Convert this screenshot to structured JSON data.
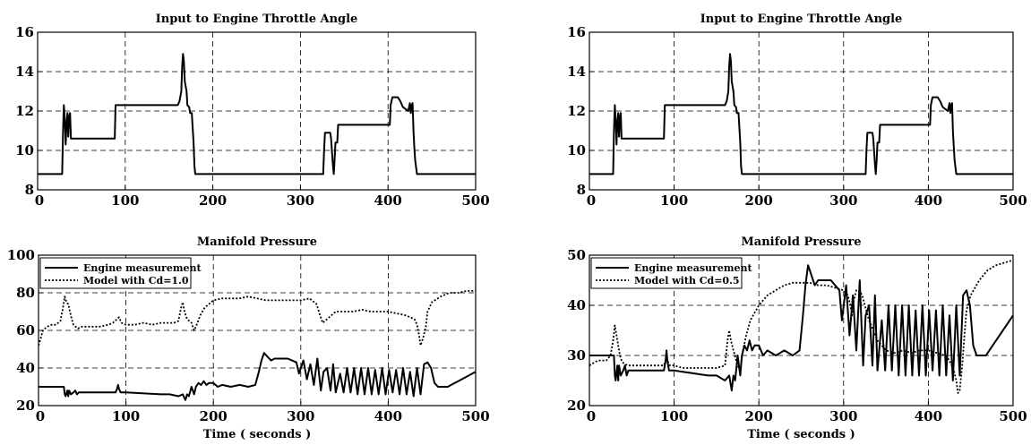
{
  "chart_data": [
    {
      "type": "line",
      "title": "Input to Engine Throttle Angle",
      "xlabel": "",
      "ylabel": "",
      "xlim": [
        0,
        500
      ],
      "ylim": [
        8,
        16
      ],
      "xticks": [
        "0",
        "100",
        "200",
        "300",
        "400",
        "500"
      ],
      "yticks": [
        "8",
        "10",
        "12",
        "14",
        "16"
      ],
      "grid": true,
      "series": [
        {
          "style": "solid",
          "x": [
            0,
            28,
            29,
            30,
            31,
            32,
            33,
            34,
            35,
            36,
            37,
            38,
            40,
            88,
            89,
            90,
            160,
            162,
            164,
            165,
            166,
            167,
            168,
            170,
            171,
            173,
            174,
            176,
            178,
            179,
            180,
            326,
            327,
            328,
            334,
            335,
            337,
            338,
            339,
            340,
            342,
            343,
            344,
            402,
            403,
            405,
            411,
            414,
            417,
            420,
            423,
            425,
            426,
            427,
            428,
            429,
            430,
            431,
            433,
            500
          ],
          "y": [
            8.8,
            8.8,
            11.0,
            12.3,
            11.6,
            10.3,
            11.4,
            11.9,
            10.7,
            11.7,
            11.9,
            10.6,
            10.6,
            10.6,
            12.3,
            12.3,
            12.3,
            12.5,
            13.0,
            14.3,
            14.9,
            14.5,
            13.5,
            13.0,
            12.3,
            12.2,
            11.9,
            11.9,
            10.4,
            9.2,
            8.8,
            8.8,
            10.0,
            10.9,
            10.9,
            10.6,
            9.3,
            8.8,
            9.5,
            10.4,
            10.4,
            11.3,
            11.3,
            11.3,
            12.3,
            12.7,
            12.7,
            12.5,
            12.2,
            12.1,
            12.0,
            12.4,
            11.9,
            12.3,
            12.4,
            11.0,
            10.2,
            9.5,
            8.8,
            8.8
          ]
        }
      ]
    },
    {
      "type": "line",
      "title": "Input to Engine Throttle Angle",
      "xlabel": "",
      "ylabel": "",
      "xlim": [
        0,
        500
      ],
      "ylim": [
        8,
        16
      ],
      "xticks": [
        "0",
        "100",
        "200",
        "300",
        "400",
        "500"
      ],
      "yticks": [
        "8",
        "10",
        "12",
        "14",
        "16"
      ],
      "grid": true,
      "series": [
        {
          "style": "solid",
          "x": [
            0,
            28,
            29,
            30,
            31,
            32,
            33,
            34,
            35,
            36,
            37,
            38,
            40,
            88,
            89,
            90,
            160,
            162,
            164,
            165,
            166,
            167,
            168,
            170,
            171,
            173,
            174,
            176,
            178,
            179,
            180,
            326,
            327,
            328,
            334,
            335,
            337,
            338,
            339,
            340,
            342,
            343,
            344,
            402,
            403,
            405,
            411,
            414,
            417,
            420,
            423,
            425,
            426,
            427,
            428,
            429,
            430,
            431,
            433,
            500
          ],
          "y": [
            8.8,
            8.8,
            11.0,
            12.3,
            11.6,
            10.3,
            11.4,
            11.9,
            10.7,
            11.7,
            11.9,
            10.6,
            10.6,
            10.6,
            12.3,
            12.3,
            12.3,
            12.5,
            13.0,
            14.3,
            14.9,
            14.5,
            13.5,
            13.0,
            12.3,
            12.2,
            11.9,
            11.9,
            10.4,
            9.2,
            8.8,
            8.8,
            10.0,
            10.9,
            10.9,
            10.6,
            9.3,
            8.8,
            9.5,
            10.4,
            10.4,
            11.3,
            11.3,
            11.3,
            12.3,
            12.7,
            12.7,
            12.5,
            12.2,
            12.1,
            12.0,
            12.4,
            11.9,
            12.3,
            12.4,
            11.0,
            10.2,
            9.5,
            8.8,
            8.8
          ]
        }
      ]
    },
    {
      "type": "line",
      "title": "Manifold Pressure",
      "xlabel": "Time ( seconds )",
      "ylabel": "",
      "xlim": [
        0,
        500
      ],
      "ylim": [
        20,
        100
      ],
      "xticks": [
        "0",
        "100",
        "200",
        "300",
        "400",
        "500"
      ],
      "yticks": [
        "20",
        "40",
        "60",
        "80",
        "100"
      ],
      "grid": true,
      "legend": "top-left",
      "series": [
        {
          "name": "Engine measurement",
          "style": "solid",
          "x": [
            0,
            29,
            30,
            31,
            33,
            34,
            35,
            37,
            40,
            42,
            44,
            46,
            48,
            88,
            90,
            91,
            92,
            94,
            96,
            98,
            100,
            140,
            150,
            160,
            165,
            168,
            170,
            172,
            175,
            178,
            180,
            183,
            186,
            189,
            192,
            195,
            200,
            205,
            210,
            220,
            230,
            240,
            248,
            252,
            255,
            258,
            262,
            266,
            270,
            275,
            285,
            295,
            298,
            303,
            307,
            311,
            315,
            319,
            323,
            326,
            330,
            334,
            337,
            340,
            345,
            349,
            353,
            357,
            361,
            365,
            369,
            373,
            377,
            381,
            385,
            389,
            393,
            397,
            401,
            405,
            409,
            413,
            417,
            421,
            425,
            429,
            433,
            437,
            441,
            445,
            449,
            453,
            457,
            460,
            468,
            500
          ],
          "y": [
            30,
            30,
            26,
            25,
            28,
            25,
            28,
            26,
            27,
            28,
            26,
            27,
            27,
            27,
            29,
            31,
            29,
            27,
            27,
            27,
            27,
            26,
            26,
            25,
            26,
            23,
            26,
            25,
            30,
            26,
            30,
            32,
            31,
            33,
            31,
            32,
            32,
            30,
            31,
            30,
            31,
            30,
            31,
            38,
            44,
            48,
            46,
            44,
            45,
            45,
            45,
            43,
            37,
            44,
            34,
            42,
            31,
            45,
            28,
            38,
            40,
            28,
            42,
            27,
            37,
            27,
            40,
            27,
            40,
            26,
            40,
            26,
            40,
            26,
            39,
            26,
            40,
            26,
            39,
            27,
            39,
            26,
            40,
            26,
            38,
            25,
            40,
            26,
            42,
            43,
            40,
            32,
            30,
            30,
            30,
            38
          ]
        },
        {
          "name": "Model with Cd=1.0",
          "style": "dotted",
          "x": [
            0,
            2,
            5,
            10,
            15,
            20,
            25,
            28,
            30,
            32,
            34,
            36,
            38,
            40,
            45,
            50,
            60,
            70,
            80,
            85,
            90,
            92,
            95,
            100,
            110,
            120,
            130,
            140,
            150,
            155,
            160,
            163,
            165,
            167,
            170,
            175,
            178,
            180,
            185,
            190,
            200,
            210,
            220,
            230,
            240,
            250,
            260,
            270,
            280,
            290,
            300,
            310,
            318,
            322,
            325,
            330,
            335,
            340,
            350,
            360,
            370,
            380,
            390,
            400,
            410,
            420,
            425,
            430,
            433,
            435,
            437,
            440,
            443,
            445,
            450,
            460,
            470,
            480,
            490,
            500
          ],
          "y": [
            52,
            55,
            60,
            62,
            63,
            63,
            65,
            72,
            78,
            75,
            74,
            70,
            66,
            63,
            61,
            62,
            62,
            62,
            63,
            64,
            66,
            67,
            64,
            63,
            63,
            64,
            63,
            64,
            64,
            64,
            65,
            72,
            75,
            70,
            66,
            64,
            60,
            62,
            68,
            72,
            76,
            77,
            77,
            77,
            78,
            77,
            76,
            76,
            76,
            76,
            76,
            77,
            74,
            68,
            64,
            66,
            68,
            70,
            70,
            70,
            71,
            70,
            70,
            70,
            69,
            68,
            67,
            66,
            63,
            58,
            52,
            56,
            62,
            70,
            75,
            78,
            80,
            80,
            81,
            81
          ]
        }
      ]
    },
    {
      "type": "line",
      "title": "Manifold Pressure",
      "xlabel": "Time ( seconds )",
      "ylabel": "",
      "xlim": [
        0,
        500
      ],
      "ylim": [
        20,
        50
      ],
      "xticks": [
        "0",
        "100",
        "200",
        "300",
        "400",
        "500"
      ],
      "yticks": [
        "20",
        "30",
        "40",
        "50"
      ],
      "grid": true,
      "legend": "top-left",
      "series": [
        {
          "name": "Engine measurement",
          "style": "solid",
          "x": [
            0,
            29,
            30,
            31,
            33,
            34,
            35,
            37,
            40,
            42,
            44,
            46,
            48,
            88,
            90,
            91,
            92,
            94,
            96,
            98,
            100,
            140,
            150,
            160,
            165,
            168,
            170,
            172,
            175,
            178,
            180,
            183,
            186,
            189,
            192,
            195,
            200,
            205,
            210,
            220,
            230,
            240,
            248,
            252,
            255,
            258,
            262,
            266,
            270,
            275,
            285,
            295,
            298,
            303,
            307,
            311,
            315,
            319,
            323,
            326,
            330,
            334,
            337,
            340,
            345,
            349,
            353,
            357,
            361,
            365,
            369,
            373,
            377,
            381,
            385,
            389,
            393,
            397,
            401,
            405,
            409,
            413,
            417,
            421,
            425,
            429,
            433,
            437,
            441,
            445,
            449,
            453,
            457,
            460,
            468,
            500
          ],
          "y": [
            30,
            30,
            26,
            25,
            28,
            25,
            28,
            26,
            27,
            28,
            26,
            27,
            27,
            27,
            29,
            31,
            29,
            27,
            27,
            27,
            27,
            26,
            26,
            25,
            26,
            23,
            26,
            25,
            30,
            26,
            30,
            32,
            31,
            33,
            31,
            32,
            32,
            30,
            31,
            30,
            31,
            30,
            31,
            38,
            44,
            48,
            46,
            44,
            45,
            45,
            45,
            43,
            37,
            44,
            34,
            42,
            31,
            45,
            28,
            38,
            40,
            28,
            42,
            27,
            37,
            27,
            40,
            27,
            40,
            26,
            40,
            26,
            40,
            26,
            39,
            26,
            40,
            26,
            39,
            27,
            39,
            26,
            40,
            26,
            38,
            25,
            40,
            26,
            42,
            43,
            40,
            32,
            30,
            30,
            30,
            38
          ]
        },
        {
          "name": "Model with Cd=0.5",
          "style": "dotted",
          "x": [
            0,
            5,
            10,
            20,
            25,
            28,
            30,
            32,
            34,
            36,
            38,
            40,
            45,
            50,
            60,
            80,
            88,
            90,
            92,
            95,
            100,
            110,
            120,
            140,
            150,
            160,
            163,
            165,
            167,
            170,
            175,
            178,
            180,
            185,
            190,
            200,
            210,
            220,
            230,
            240,
            250,
            260,
            270,
            280,
            290,
            300,
            305,
            308,
            310,
            312,
            315,
            318,
            322,
            325,
            330,
            335,
            340,
            345,
            350,
            360,
            370,
            380,
            390,
            400,
            410,
            420,
            425,
            430,
            433,
            435,
            437,
            440,
            443,
            445,
            450,
            460,
            470,
            480,
            490,
            500
          ],
          "y": [
            28,
            28.5,
            29,
            29,
            30,
            33,
            36,
            34,
            32,
            30,
            29,
            28.5,
            28,
            28,
            28,
            28,
            28,
            29,
            29,
            28,
            28,
            27.5,
            27.5,
            27.5,
            27.5,
            28,
            33,
            35,
            33,
            31,
            28,
            27,
            30,
            34,
            37,
            40,
            42,
            43,
            44,
            44.5,
            44.5,
            44.5,
            44,
            44,
            43.5,
            43,
            42,
            40,
            38,
            41,
            43,
            43,
            42,
            40,
            37,
            35,
            33,
            32,
            31,
            30.5,
            31,
            30.5,
            31,
            31,
            30.5,
            30,
            29,
            27,
            25,
            22.5,
            23,
            28,
            35,
            39,
            42,
            45,
            47,
            48,
            48.5,
            49
          ]
        }
      ]
    }
  ]
}
